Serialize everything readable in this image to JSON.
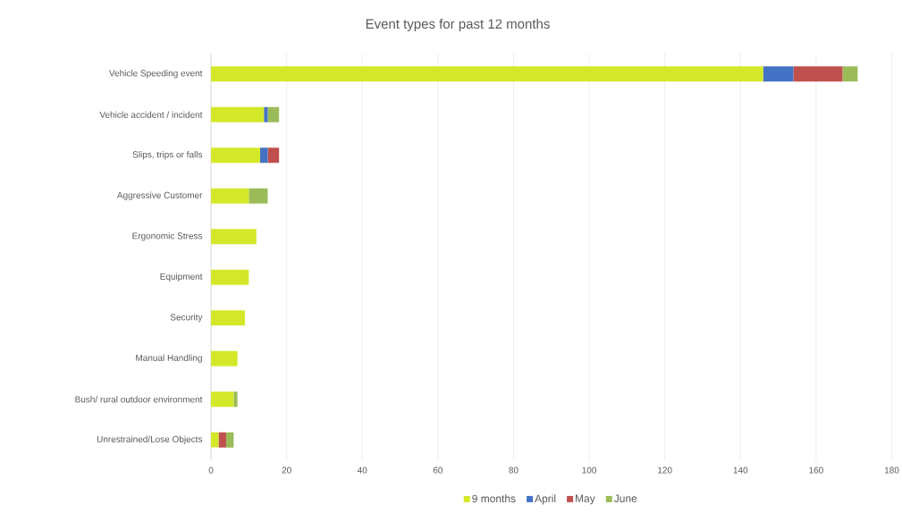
{
  "chart_data": {
    "type": "bar",
    "orientation": "horizontal",
    "stacked": true,
    "title": "Event types for past 12 months",
    "categories": [
      "Vehicle Speeding event",
      "Vehicle accident / incident",
      "Slips, trips or falls",
      "Aggressive Customer",
      "Ergonomic Stress",
      "Equipment",
      "Security",
      "Manual Handling",
      "Bush/ rural outdoor environment",
      "Unrestrained/Lose Objects"
    ],
    "series": [
      {
        "name": "9 months",
        "color": "#d4e82a",
        "values": [
          146,
          14,
          13,
          10,
          12,
          10,
          9,
          7,
          6,
          2
        ]
      },
      {
        "name": "April",
        "color": "#4472c4",
        "values": [
          8,
          1,
          2,
          0,
          0,
          0,
          0,
          0,
          0,
          0
        ]
      },
      {
        "name": "May",
        "color": "#c0504d",
        "values": [
          13,
          0,
          3,
          0,
          0,
          0,
          0,
          0,
          0,
          2
        ]
      },
      {
        "name": "June",
        "color": "#9bbb59",
        "values": [
          4,
          3,
          0,
          5,
          0,
          0,
          0,
          0,
          1,
          2
        ]
      }
    ],
    "xlim": [
      0,
      180
    ],
    "xticks": [
      0,
      20,
      40,
      60,
      80,
      100,
      120,
      140,
      160,
      180
    ],
    "grid": "x",
    "legend": "bottom"
  }
}
